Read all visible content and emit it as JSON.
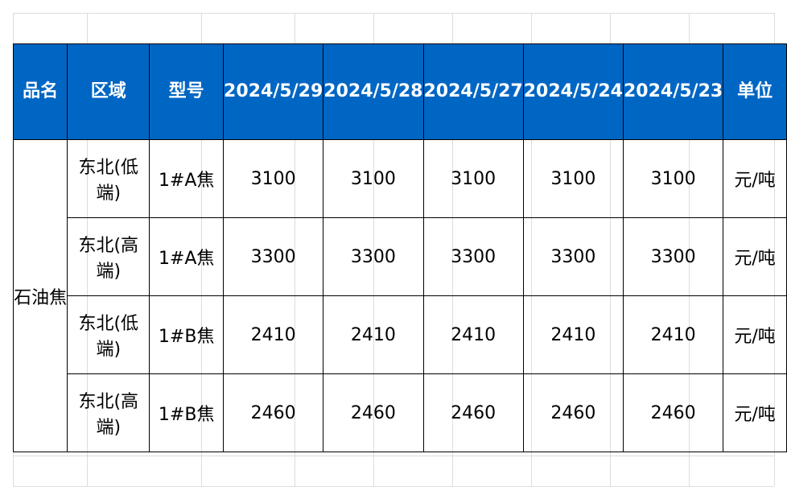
{
  "table": {
    "headers": {
      "product": "品名",
      "region": "区域",
      "model": "型号",
      "date_1": "2024/5/29",
      "date_2": "2024/5/28",
      "date_3": "2024/5/27",
      "date_4": "2024/5/24",
      "date_5": "2024/5/23",
      "unit": "单位"
    },
    "product_name": "石油焦",
    "rows": [
      {
        "region": "东北(低端)",
        "model": "1#A焦",
        "p1": "3100",
        "p2": "3100",
        "p3": "3100",
        "p4": "3100",
        "p5": "3100",
        "unit": "元/吨"
      },
      {
        "region": "东北(高端)",
        "model": "1#A焦",
        "p1": "3300",
        "p2": "3300",
        "p3": "3300",
        "p4": "3300",
        "p5": "3300",
        "unit": "元/吨"
      },
      {
        "region": "东北(低端)",
        "model": "1#B焦",
        "p1": "2410",
        "p2": "2410",
        "p3": "2410",
        "p4": "2410",
        "p5": "2410",
        "unit": "元/吨"
      },
      {
        "region": "东北(高端)",
        "model": "1#B焦",
        "p1": "2460",
        "p2": "2460",
        "p3": "2460",
        "p4": "2460",
        "p5": "2460",
        "unit": "元/吨"
      }
    ],
    "colors": {
      "header_background": "#0066c4",
      "header_text": "#ffffff",
      "border": "#000000"
    }
  }
}
